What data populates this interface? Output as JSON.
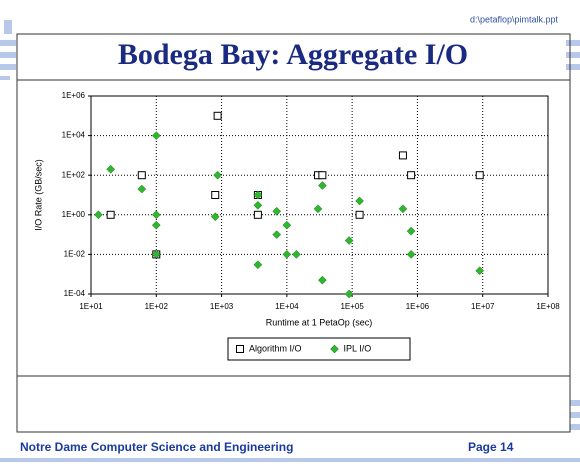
{
  "header": {
    "path": "d:\\petaflop\\pimtalk.ppt"
  },
  "chart_data": {
    "type": "scatter",
    "title": "Bodega Bay: Aggregate I/O",
    "x_label": "Runtime at 1 PetaOp (sec)",
    "y_label": "I/O Rate (GB/sec)",
    "xscale": "log",
    "yscale": "log",
    "xlim": [
      10,
      100000000
    ],
    "ylim": [
      0.0001,
      1000000
    ],
    "xticks": [
      {
        "value": 10,
        "label": "1E+01"
      },
      {
        "value": 100,
        "label": "1E+02"
      },
      {
        "value": 1000,
        "label": "1E+03"
      },
      {
        "value": 10000,
        "label": "1E+04"
      },
      {
        "value": 100000,
        "label": "1E+05"
      },
      {
        "value": 1000000,
        "label": "1E+06"
      },
      {
        "value": 10000000,
        "label": "1E+07"
      },
      {
        "value": 100000000,
        "label": "1E+08"
      }
    ],
    "yticks": [
      {
        "value": 0.0001,
        "label": "1E-04"
      },
      {
        "value": 0.01,
        "label": "1E-02"
      },
      {
        "value": 1,
        "label": "1E+00"
      },
      {
        "value": 100,
        "label": "1E+02"
      },
      {
        "value": 10000,
        "label": "1E+04"
      },
      {
        "value": 1000000,
        "label": "1E+06"
      }
    ],
    "grid": true,
    "legend": "bottom",
    "series": [
      {
        "name": "Algorithm I/O",
        "color": "#000000",
        "marker": "square",
        "x": [
          20,
          60,
          100,
          870,
          800,
          3600,
          3600,
          30000,
          35000,
          130000,
          600000,
          800000,
          9000000
        ],
        "values": [
          1,
          100,
          0.01,
          100000,
          10,
          10,
          1,
          100,
          100,
          1,
          1000,
          100,
          100
        ]
      },
      {
        "name": "IPL I/O",
        "color": "#2db82d",
        "marker": "diamond",
        "x": [
          13,
          20,
          60,
          100,
          100,
          100,
          100,
          870,
          800,
          3600,
          3600,
          3600,
          7000,
          7000,
          10000,
          10000,
          14000,
          30000,
          35000,
          35000,
          90000,
          90000,
          130000,
          600000,
          800000,
          800000,
          9000000
        ],
        "values": [
          1,
          200,
          20,
          10000,
          1,
          0.3,
          0.01,
          100,
          0.8,
          10,
          3,
          0.003,
          1.5,
          0.1,
          0.3,
          0.01,
          0.01,
          2,
          30,
          0.0005,
          0.05,
          0.0001,
          5,
          2,
          0.15,
          0.01,
          0.0015
        ]
      }
    ]
  },
  "footer": {
    "left": "Notre Dame Computer Science and Engineering",
    "page": "Page 14"
  }
}
